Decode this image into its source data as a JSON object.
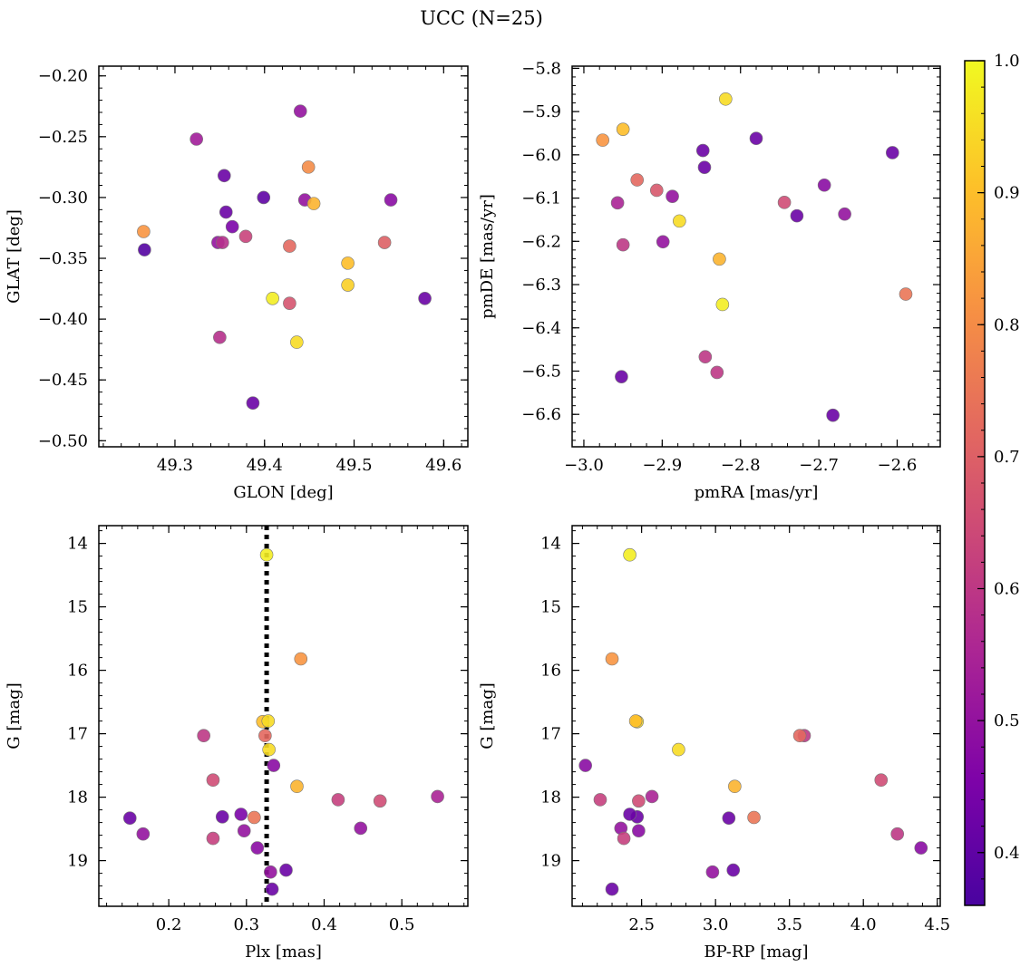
{
  "title": "UCC (N=25)",
  "colorbar": {
    "range": [
      0.36,
      1.0
    ],
    "ticks": [
      0.4,
      0.5,
      0.6,
      0.7,
      0.8,
      0.9,
      1.0
    ],
    "tick_labels": [
      "0.4",
      "0.5",
      "0.6",
      "0.7",
      "0.8",
      "0.9",
      "1.0"
    ],
    "colormap": "plasma"
  },
  "chart_data": [
    {
      "type": "scatter",
      "id": "glon-glat",
      "xlabel": "GLON [deg]",
      "ylabel": "GLAT [deg]",
      "xlim": [
        49.215,
        49.627
      ],
      "ylim": [
        -0.505,
        -0.192
      ],
      "xticks": [
        49.3,
        49.4,
        49.5,
        49.6
      ],
      "xtick_labels": [
        "49.3",
        "49.4",
        "49.5",
        "49.6"
      ],
      "yticks": [
        -0.5,
        -0.45,
        -0.4,
        -0.35,
        -0.3,
        -0.25,
        -0.2
      ],
      "ytick_labels": [
        "−0.50",
        "−0.45",
        "−0.40",
        "−0.35",
        "−0.30",
        "−0.25",
        "−0.20"
      ],
      "x": [
        49.324,
        49.44,
        49.355,
        49.449,
        49.399,
        49.445,
        49.541,
        49.455,
        49.357,
        49.265,
        49.364,
        49.379,
        49.348,
        49.353,
        49.266,
        49.428,
        49.534,
        49.493,
        49.409,
        49.493,
        49.428,
        49.579,
        49.436,
        49.35,
        49.387
      ],
      "y": [
        -0.252,
        -0.229,
        -0.282,
        -0.275,
        -0.3,
        -0.302,
        -0.302,
        -0.305,
        -0.312,
        -0.328,
        -0.324,
        -0.332,
        -0.337,
        -0.337,
        -0.343,
        -0.34,
        -0.337,
        -0.354,
        -0.383,
        -0.372,
        -0.387,
        -0.383,
        -0.419,
        -0.415,
        -0.469
      ],
      "c": [
        0.53,
        0.5,
        0.42,
        0.8,
        0.4,
        0.5,
        0.48,
        0.88,
        0.42,
        0.82,
        0.45,
        0.63,
        0.5,
        0.58,
        0.38,
        0.72,
        0.7,
        0.9,
        0.98,
        0.93,
        0.67,
        0.42,
        0.95,
        0.58,
        0.42
      ]
    },
    {
      "type": "scatter",
      "id": "pmra-pmde",
      "xlabel": "pmRA [mas/yr]",
      "ylabel": "pmDE [mas/yr]",
      "xlim": [
        -3.015,
        -2.545
      ],
      "ylim": [
        -6.675,
        -5.795
      ],
      "xticks": [
        -3.0,
        -2.9,
        -2.8,
        -2.7,
        -2.6
      ],
      "xtick_labels": [
        "−3.0",
        "−2.9",
        "−2.8",
        "−2.7",
        "−2.6"
      ],
      "yticks": [
        -6.6,
        -6.5,
        -6.4,
        -6.3,
        -6.2,
        -6.1,
        -6.0,
        -5.9,
        -5.8
      ],
      "ytick_labels": [
        "−6.6",
        "−6.5",
        "−6.4",
        "−6.3",
        "−6.2",
        "−6.1",
        "−6.0",
        "−5.9",
        "−5.8"
      ],
      "x": [
        -2.819,
        -2.95,
        -2.976,
        -2.78,
        -2.848,
        -2.606,
        -2.846,
        -2.932,
        -2.907,
        -2.887,
        -2.957,
        -2.744,
        -2.693,
        -2.728,
        -2.667,
        -2.878,
        -2.95,
        -2.899,
        -2.827,
        -2.823,
        -2.589,
        -2.845,
        -2.83,
        -2.952,
        -2.682
      ],
      "y": [
        -5.871,
        -5.941,
        -5.966,
        -5.962,
        -5.99,
        -5.995,
        -6.029,
        -6.058,
        -6.082,
        -6.096,
        -6.111,
        -6.11,
        -6.07,
        -6.141,
        -6.137,
        -6.153,
        -6.208,
        -6.201,
        -6.241,
        -6.346,
        -6.322,
        -6.467,
        -6.503,
        -6.513,
        -6.602
      ],
      "c": [
        0.95,
        0.9,
        0.82,
        0.42,
        0.42,
        0.42,
        0.42,
        0.72,
        0.68,
        0.5,
        0.55,
        0.65,
        0.48,
        0.42,
        0.5,
        0.95,
        0.6,
        0.5,
        0.88,
        0.98,
        0.75,
        0.6,
        0.6,
        0.42,
        0.42
      ]
    },
    {
      "type": "scatter",
      "id": "plx-g",
      "xlabel": "Plx [mas]",
      "ylabel": "G [mag]",
      "xlim": [
        0.11,
        0.585
      ],
      "ylim": [
        19.72,
        13.72
      ],
      "y_inverted": true,
      "vline": 0.326,
      "xticks": [
        0.2,
        0.3,
        0.4,
        0.5
      ],
      "xtick_labels": [
        "0.2",
        "0.3",
        "0.4",
        "0.5"
      ],
      "yticks": [
        14,
        15,
        16,
        17,
        18,
        19
      ],
      "ytick_labels": [
        "14",
        "15",
        "16",
        "17",
        "18",
        "19"
      ],
      "x": [
        0.326,
        0.37,
        0.321,
        0.328,
        0.245,
        0.324,
        0.329,
        0.335,
        0.257,
        0.365,
        0.418,
        0.472,
        0.546,
        0.447,
        0.15,
        0.167,
        0.269,
        0.293,
        0.31,
        0.297,
        0.257,
        0.314,
        0.331,
        0.351,
        0.333
      ],
      "y": [
        14.18,
        15.82,
        16.81,
        16.8,
        17.03,
        17.03,
        17.25,
        17.5,
        17.73,
        17.83,
        18.04,
        18.06,
        17.99,
        18.49,
        18.33,
        18.58,
        18.31,
        18.27,
        18.32,
        18.53,
        18.65,
        18.8,
        19.18,
        19.15,
        19.45
      ],
      "c": [
        0.98,
        0.82,
        0.9,
        0.95,
        0.6,
        0.72,
        0.95,
        0.48,
        0.65,
        0.88,
        0.62,
        0.65,
        0.55,
        0.5,
        0.42,
        0.5,
        0.42,
        0.45,
        0.75,
        0.5,
        0.62,
        0.48,
        0.5,
        0.42,
        0.42
      ]
    },
    {
      "type": "scatter",
      "id": "bprp-g",
      "xlabel": "BP-RP [mag]",
      "ylabel": "G [mag]",
      "xlim": [
        2.03,
        4.52
      ],
      "ylim": [
        19.72,
        13.72
      ],
      "y_inverted": true,
      "xticks": [
        2.5,
        3.0,
        3.5,
        4.0,
        4.5
      ],
      "xtick_labels": [
        "2.5",
        "3.0",
        "3.5",
        "4.0",
        "4.5"
      ],
      "yticks": [
        14,
        15,
        16,
        17,
        18,
        19
      ],
      "ytick_labels": [
        "14",
        "15",
        "16",
        "17",
        "18",
        "19"
      ],
      "x": [
        2.42,
        2.3,
        2.47,
        2.46,
        3.6,
        3.57,
        2.75,
        2.12,
        4.12,
        3.13,
        2.22,
        2.57,
        2.48,
        2.47,
        2.42,
        3.09,
        3.26,
        2.36,
        2.38,
        2.48,
        4.23,
        4.39,
        2.98,
        3.12,
        2.3
      ],
      "y": [
        14.18,
        15.82,
        16.81,
        16.8,
        17.03,
        17.03,
        17.25,
        17.5,
        17.73,
        17.83,
        18.04,
        17.99,
        18.06,
        18.31,
        18.27,
        18.33,
        18.32,
        18.49,
        18.65,
        18.53,
        18.58,
        18.8,
        19.18,
        19.15,
        19.45
      ],
      "c": [
        0.98,
        0.82,
        0.95,
        0.9,
        0.6,
        0.72,
        0.95,
        0.48,
        0.65,
        0.88,
        0.62,
        0.55,
        0.65,
        0.42,
        0.42,
        0.42,
        0.75,
        0.5,
        0.62,
        0.48,
        0.6,
        0.48,
        0.5,
        0.42,
        0.42
      ]
    }
  ]
}
